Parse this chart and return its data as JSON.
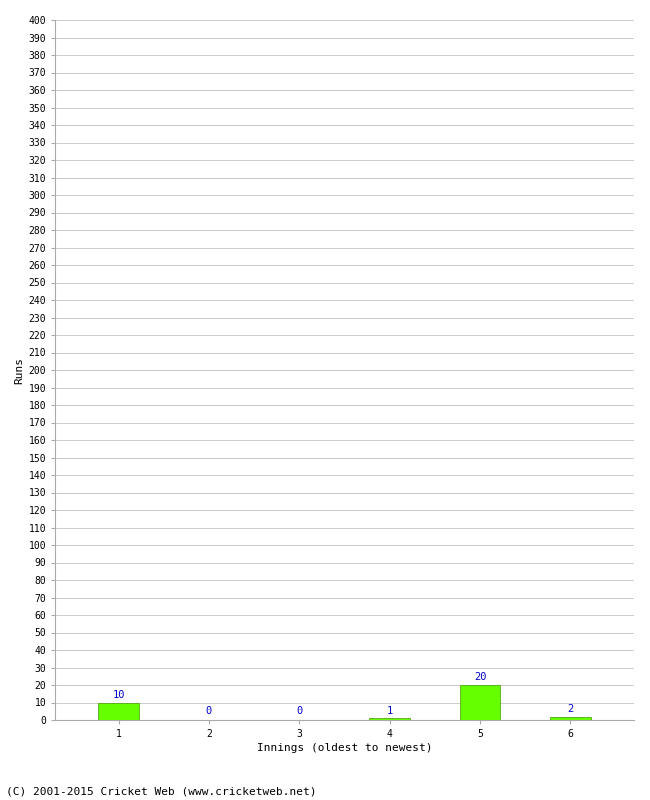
{
  "xlabel": "Innings (oldest to newest)",
  "ylabel": "Runs",
  "categories": [
    1,
    2,
    3,
    4,
    5,
    6
  ],
  "values": [
    10,
    0,
    0,
    1,
    20,
    2
  ],
  "bar_color": "#66ff00",
  "bar_edge_color": "#449900",
  "label_color": "#0000cc",
  "ylim": [
    0,
    400
  ],
  "yticks": [
    0,
    10,
    20,
    30,
    40,
    50,
    60,
    70,
    80,
    90,
    100,
    110,
    120,
    130,
    140,
    150,
    160,
    170,
    180,
    190,
    200,
    210,
    220,
    230,
    240,
    250,
    260,
    270,
    280,
    290,
    300,
    310,
    320,
    330,
    340,
    350,
    360,
    370,
    380,
    390,
    400
  ],
  "background_color": "#ffffff",
  "grid_color": "#cccccc",
  "footer_text": "(C) 2001-2015 Cricket Web (www.cricketweb.net)",
  "label_fontsize": 7.5,
  "axis_tick_fontsize": 7,
  "axis_label_fontsize": 8,
  "footer_fontsize": 8,
  "bar_width": 0.45
}
